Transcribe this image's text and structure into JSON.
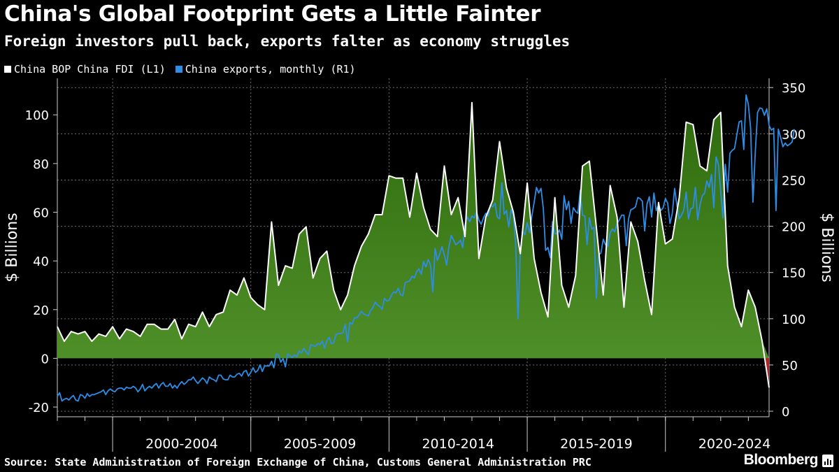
{
  "header": {
    "title": "China's Global Footprint Gets a Little Fainter",
    "subtitle": "Foreign investors pull back, exports falter as economy struggles"
  },
  "footer": {
    "source": "Source: State Administration of Foreign Exchange of China, Customs General Administration PRC",
    "brand": "Bloomberg"
  },
  "colors": {
    "background": "#000000",
    "fdi_line": "#ffffff",
    "fdi_fill_top": "#2f6b0e",
    "fdi_fill_bottom": "#4f8f28",
    "fdi_negative_fill": "#b3242a",
    "exports_line": "#2e8de6",
    "grid": "#6e6e6e"
  },
  "chart_data": {
    "type": "area",
    "title": "China's Global Footprint Gets a Little Fainter",
    "subtitle": "Foreign investors pull back, exports falter as economy struggles",
    "ylabel_left": "$ Billions",
    "ylabel_right": "$ Billions",
    "ylim_left": [
      -24,
      115
    ],
    "ylim_right": [
      -6,
      360
    ],
    "yticks_left": [
      -20,
      0,
      20,
      40,
      60,
      80,
      100
    ],
    "yticks_right": [
      0,
      50,
      100,
      150,
      200,
      250,
      300,
      350
    ],
    "xlim": [
      1998.0,
      2023.75
    ],
    "x_categories": [
      "2000-2004",
      "2005-2009",
      "2010-2014",
      "2015-2019",
      "2020-2024"
    ],
    "x_category_boundaries": [
      2000,
      2005,
      2010,
      2015,
      2020
    ],
    "grid": true,
    "legend": [
      "China BOP China FDI (L1)",
      "China exports, monthly  (R1)"
    ],
    "series": [
      {
        "name": "China BOP China FDI (L1)",
        "axis": "left",
        "frequency": "quarterly",
        "x_start": 1998.0,
        "x_step": 0.25,
        "values": [
          13,
          7,
          11,
          10,
          11,
          7,
          10,
          9,
          13,
          8,
          12,
          11,
          9,
          14,
          14,
          12,
          12,
          16,
          8,
          14,
          13,
          19,
          13,
          18,
          19,
          28,
          26,
          33,
          25,
          22,
          20,
          56,
          30,
          38,
          37,
          51,
          54,
          33,
          41,
          44,
          28,
          20,
          26,
          38,
          46,
          51,
          59,
          59,
          75,
          74,
          74,
          58,
          76,
          62,
          53,
          50,
          79,
          59,
          66,
          50,
          105,
          41,
          58,
          65,
          89,
          70,
          60,
          43,
          72,
          41,
          27,
          17,
          66,
          30,
          21,
          34,
          79,
          81,
          54,
          26,
          71,
          58,
          21,
          56,
          48,
          32,
          18,
          64,
          47,
          49,
          66,
          97,
          96,
          79,
          77,
          98,
          101,
          38,
          21,
          13,
          28,
          21,
          7,
          -12
        ]
      },
      {
        "name": "China exports, monthly  (R1)",
        "axis": "right",
        "frequency": "monthly",
        "x_start": 1998.0,
        "x_step": 0.0833333,
        "values": [
          16,
          20,
          11,
          13,
          14,
          12,
          15,
          17,
          12,
          11,
          18,
          17,
          14,
          19,
          16,
          18,
          18,
          19,
          20,
          21,
          23,
          18,
          22,
          24,
          22,
          21,
          24,
          25,
          25,
          23,
          26,
          25,
          25,
          27,
          25,
          21,
          24,
          29,
          22,
          25,
          27,
          25,
          28,
          30,
          25,
          29,
          31,
          27,
          27,
          30,
          25,
          28,
          25,
          29,
          32,
          29,
          31,
          34,
          34,
          37,
          33,
          30,
          33,
          36,
          34,
          30,
          37,
          35,
          34,
          32,
          39,
          39,
          35,
          34,
          34,
          39,
          37,
          37,
          40,
          41,
          38,
          43,
          44,
          38,
          42,
          47,
          42,
          44,
          50,
          43,
          49,
          49,
          49,
          54,
          47,
          62,
          61,
          53,
          57,
          48,
          62,
          60,
          58,
          61,
          59,
          65,
          63,
          68,
          64,
          61,
          72,
          71,
          70,
          73,
          72,
          76,
          68,
          76,
          80,
          73,
          74,
          83,
          84,
          84,
          85,
          94,
          75,
          96,
          94,
          101,
          101,
          104,
          108,
          105,
          104,
          103,
          109,
          112,
          118,
          115,
          113,
          110,
          122,
          119,
          120,
          125,
          129,
          128,
          133,
          126,
          125,
          139,
          140,
          141,
          146,
          144,
          151,
          154,
          148,
          162,
          156,
          164,
          158,
          129,
          176,
          163,
          170,
          178,
          169,
          158,
          178,
          190,
          185,
          180,
          182,
          185,
          177,
          202,
          210,
          205,
          211,
          209,
          216,
          207,
          202,
          209,
          214,
          211,
          223,
          221,
          225,
          210,
          208,
          247,
          213,
          217,
          199,
          218,
          212,
          180,
          100,
          174,
          195,
          191,
          204,
          193,
          211,
          226,
          242,
          236,
          241,
          219,
          174,
          177,
          166,
          205,
          192,
          192,
          196,
          186,
          233,
          218,
          227,
          203,
          220,
          216,
          214,
          239,
          212,
          211,
          180,
          209,
          197,
          199,
          122,
          169,
          171,
          186,
          180,
          178,
          193,
          197,
          194,
          203,
          207,
          212,
          212,
          179,
          208,
          218,
          219,
          221,
          231,
          230,
          227,
          195,
          224,
          232,
          210,
          236,
          217,
          223,
          217,
          220,
          230,
          225,
          203,
          214,
          241,
          223,
          208,
          212,
          218,
          237,
          208,
          219,
          220,
          242,
          207,
          223,
          233,
          236,
          249,
          242,
          256,
          220,
          275,
          267,
          238,
          209,
          267,
          237,
          279,
          282,
          284,
          299,
          313,
          314,
          283,
          342,
          332,
          306,
          226,
          279,
          323,
          328,
          327,
          320,
          327,
          309,
          304,
          306,
          217,
          305,
          296,
          286,
          290,
          287,
          289,
          291,
          305
        ]
      }
    ]
  }
}
